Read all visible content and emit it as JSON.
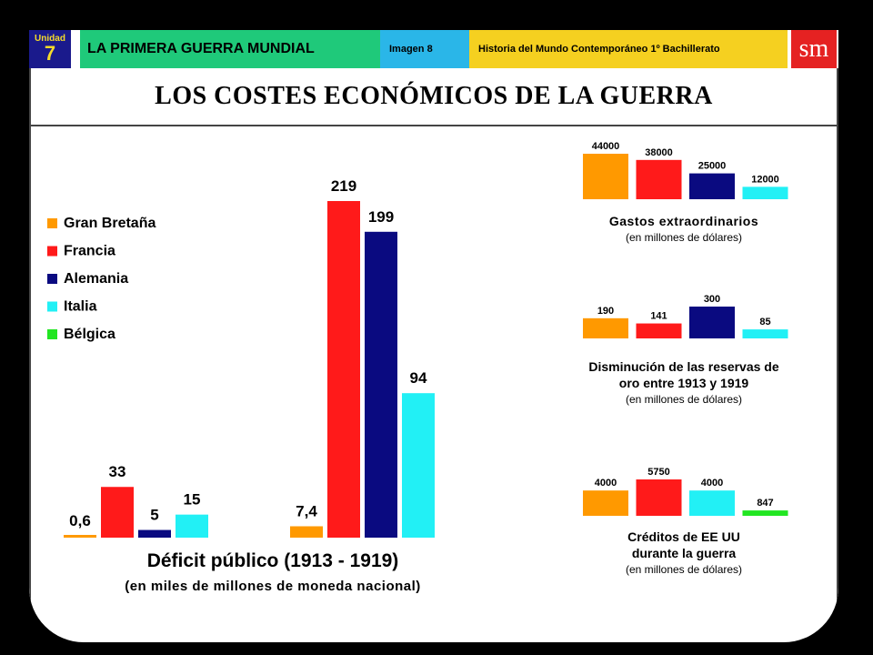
{
  "header": {
    "unit_label": "Unidad",
    "unit_number": "7",
    "topic": "LA PRIMERA GUERRA MUNDIAL",
    "image_label": "Imagen 8",
    "course": "Historia del Mundo Contemporáneo 1º Bachillerato",
    "publisher_logo": "sm"
  },
  "slide_title": "LOS COSTES ECONÓMICOS DE LA GUERRA",
  "colors": {
    "gran_bretana": "#ff9900",
    "francia": "#ff1a1a",
    "alemania": "#0a0a80",
    "italia": "#22f0f5",
    "belgica": "#22e622"
  },
  "legend": [
    {
      "name": "Gran Bretaña",
      "color": "#ff9900"
    },
    {
      "name": "Francia",
      "color": "#ff1a1a"
    },
    {
      "name": "Alemania",
      "color": "#0a0a80"
    },
    {
      "name": "Italia",
      "color": "#22f0f5"
    },
    {
      "name": "Bélgica",
      "color": "#22e622"
    }
  ],
  "chart_data": [
    {
      "type": "bar",
      "title": "Déficit público (1913 - 1919)",
      "subtitle": "(en miles de millones de moneda nacional)",
      "groups": [
        {
          "bars": [
            {
              "country": "Gran Bretaña",
              "value": 0.6,
              "label": "0,6"
            },
            {
              "country": "Francia",
              "value": 33,
              "label": "33"
            },
            {
              "country": "Alemania",
              "value": 5,
              "label": "5"
            },
            {
              "country": "Italia",
              "value": 15,
              "label": "15"
            }
          ]
        },
        {
          "bars": [
            {
              "country": "Gran Bretaña",
              "value": 7.4,
              "label": "7,4"
            },
            {
              "country": "Francia",
              "value": 219,
              "label": "219"
            },
            {
              "country": "Alemania",
              "value": 199,
              "label": "199"
            },
            {
              "country": "Italia",
              "value": 94,
              "label": "94"
            }
          ]
        }
      ]
    },
    {
      "type": "bar",
      "title": "Gastos extraordinarios",
      "subtitle": "(en millones de dólares)",
      "bars": [
        {
          "country": "Gran Bretaña",
          "value": 44000,
          "label": "44000"
        },
        {
          "country": "Francia",
          "value": 38000,
          "label": "38000"
        },
        {
          "country": "Alemania",
          "value": 25000,
          "label": "25000"
        },
        {
          "country": "Italia",
          "value": 12000,
          "label": "12000"
        }
      ]
    },
    {
      "type": "bar",
      "title": "Disminución de las reservas de oro entre 1913 y 1919",
      "title_lines": [
        "Disminución de las reservas de",
        "oro entre 1913 y 1919"
      ],
      "subtitle": "(en millones de dólares)",
      "bars": [
        {
          "country": "Gran Bretaña",
          "value": 190,
          "label": "190"
        },
        {
          "country": "Francia",
          "value": 141,
          "label": "141"
        },
        {
          "country": "Alemania",
          "value": 300,
          "label": "300"
        },
        {
          "country": "Italia",
          "value": 85,
          "label": "85"
        }
      ]
    },
    {
      "type": "bar",
      "title": "Créditos de EE UU durante la guerra",
      "title_lines": [
        "Créditos de EE UU",
        "durante la guerra"
      ],
      "subtitle": "(en millones de dólares)",
      "bars": [
        {
          "country": "Gran Bretaña",
          "value": 4000,
          "label": "4000"
        },
        {
          "country": "Francia",
          "value": 5750,
          "label": "5750"
        },
        {
          "country": "Italia",
          "value": 4000,
          "label": "4000"
        },
        {
          "country": "Bélgica",
          "value": 847,
          "label": "847"
        }
      ]
    }
  ]
}
